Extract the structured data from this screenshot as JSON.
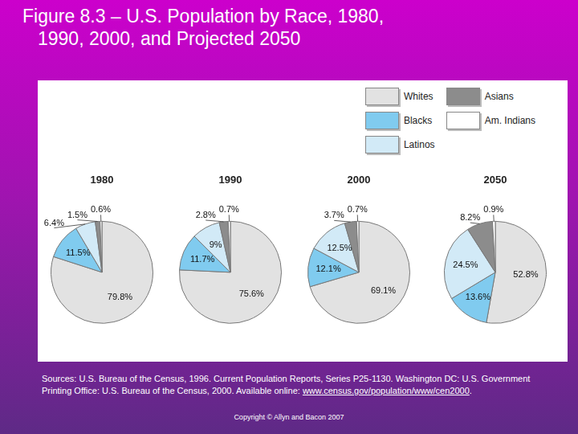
{
  "title": [
    "Figure 8.3 – U.S. Population by Race, 1980,",
    "1990, 2000, and Projected 2050"
  ],
  "legend": "upper right",
  "sources": {
    "text": "Sources: U.S. Bureau of the Census, 1996. Current Population Reports, Series P25-1130. Washington DC: U.S. Government Printing Office: U.S. Bureau of the Census, 2000. Available online:",
    "link": "www.census.gov/population/www/cen2000",
    "after_link": "."
  },
  "copyright": "Copyright © Allyn and Bacon 2007",
  "chart_data": [
    {
      "type": "pie",
      "title": "1980",
      "categories": [
        "Whites",
        "Blacks",
        "Latinos",
        "Asians",
        "Am. Indians"
      ],
      "values": [
        79.8,
        11.5,
        6.4,
        1.5,
        0.6
      ],
      "value_labels": [
        "79.8%",
        "11.5%",
        "6.4%",
        "1.5%",
        "0.6%"
      ],
      "colors": [
        "#e2e2e2",
        "#80cbef",
        "#d2eaf7",
        "#8c8c8c",
        "#ffffff"
      ],
      "data_labels": true
    },
    {
      "type": "pie",
      "title": "1990",
      "categories": [
        "Whites",
        "Blacks",
        "Latinos",
        "Asians",
        "Am. Indians"
      ],
      "values": [
        75.6,
        11.7,
        9,
        2.8,
        0.7
      ],
      "value_labels": [
        "75.6%",
        "11.7%",
        "9%",
        "2.8%",
        "0.7%"
      ],
      "colors": [
        "#e2e2e2",
        "#80cbef",
        "#d2eaf7",
        "#8c8c8c",
        "#ffffff"
      ],
      "data_labels": true
    },
    {
      "type": "pie",
      "title": "2000",
      "categories": [
        "Whites",
        "Blacks",
        "Latinos",
        "Asians",
        "Am. Indians"
      ],
      "values": [
        69.1,
        12.1,
        12.5,
        3.7,
        0.7
      ],
      "value_labels": [
        "69.1%",
        "12.1%",
        "12.5%",
        "3.7%",
        "0.7%"
      ],
      "colors": [
        "#e2e2e2",
        "#80cbef",
        "#d2eaf7",
        "#8c8c8c",
        "#ffffff"
      ],
      "data_labels": true
    },
    {
      "type": "pie",
      "title": "2050",
      "categories": [
        "Whites",
        "Blacks",
        "Latinos",
        "Asians",
        "Am. Indians"
      ],
      "values": [
        52.8,
        13.6,
        24.5,
        8.2,
        0.9
      ],
      "value_labels": [
        "52.8%",
        "13.6%",
        "24.5%",
        "8.2%",
        "0.9%"
      ],
      "colors": [
        "#e2e2e2",
        "#80cbef",
        "#d2eaf7",
        "#8c8c8c",
        "#ffffff"
      ],
      "data_labels": true
    }
  ]
}
